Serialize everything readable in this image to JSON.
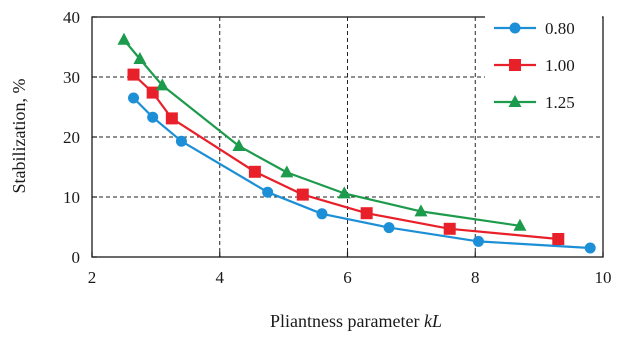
{
  "chart_data": {
    "type": "line",
    "xlabel": "Pliantness parameter ",
    "xlabel_italic": "kL",
    "ylabel": "Stabilization, %",
    "xlim": [
      2,
      10
    ],
    "ylim": [
      0,
      40
    ],
    "xticks": [
      2,
      4,
      6,
      8,
      10
    ],
    "yticks": [
      0,
      10,
      20,
      30,
      40
    ],
    "xtick_labels": [
      "2",
      "4",
      "6",
      "8",
      "10"
    ],
    "ytick_labels": [
      "0",
      "10",
      "20",
      "30",
      "40"
    ],
    "grid": true,
    "grid_style": "dashed",
    "legend_position": "top-right",
    "series": [
      {
        "name": "0.80",
        "color": "#1c8fd6",
        "marker": "circle",
        "x": [
          2.65,
          2.95,
          3.4,
          4.75,
          5.6,
          6.65,
          8.05,
          9.8
        ],
        "y": [
          26.5,
          23.3,
          19.3,
          10.8,
          7.2,
          4.9,
          2.6,
          1.5
        ]
      },
      {
        "name": "1.00",
        "color": "#e8202a",
        "marker": "square",
        "x": [
          2.65,
          2.95,
          3.25,
          4.55,
          5.3,
          6.3,
          7.6,
          9.3
        ],
        "y": [
          30.4,
          27.4,
          23.1,
          14.2,
          10.4,
          7.3,
          4.7,
          3.0
        ]
      },
      {
        "name": "1.25",
        "color": "#1d9b4c",
        "marker": "triangle",
        "x": [
          2.5,
          2.75,
          3.1,
          4.3,
          5.05,
          5.95,
          7.15,
          8.7
        ],
        "y": [
          36.2,
          33.0,
          28.6,
          18.5,
          14.1,
          10.6,
          7.6,
          5.2
        ]
      }
    ]
  }
}
